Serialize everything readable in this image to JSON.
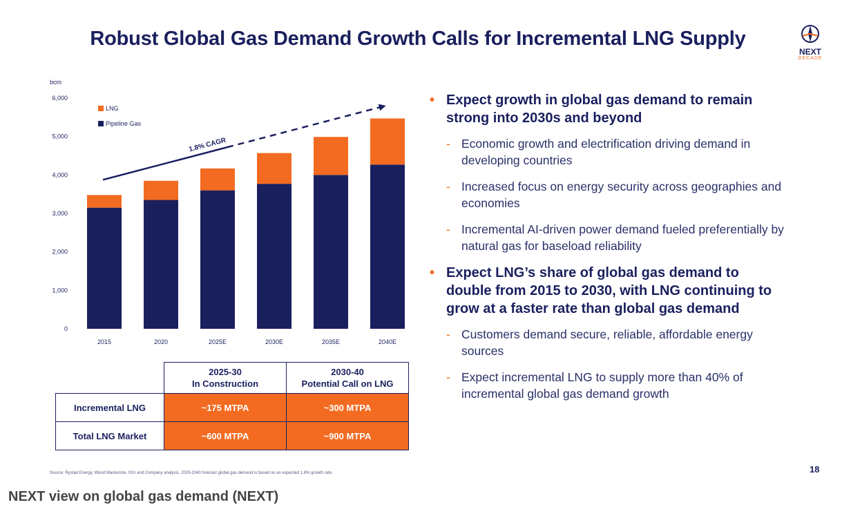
{
  "slide": {
    "title": "Robust Global Gas Demand Growth Calls for Incremental LNG Supply",
    "logo_text": "NEXT",
    "logo_subtext": "DECADE",
    "page_number": "18",
    "source": "Source: Rystad Energy, Wood Mackenzie, IGU and Company analysis. 2025-2040 forecast global gas demand is based on an expected 1.8% growth rate."
  },
  "caption": "NEXT view on global gas demand (NEXT)",
  "chart_data": {
    "type": "bar",
    "stacked": true,
    "title": "",
    "ylabel": "bcm",
    "xlabel": "",
    "ylim": [
      0,
      6000
    ],
    "yticks": [
      0,
      1000,
      2000,
      3000,
      4000,
      5000,
      6000
    ],
    "ytick_labels": [
      "0",
      "1,000",
      "2,000",
      "3,000",
      "4,000",
      "5,000",
      "6,000"
    ],
    "categories": [
      "2015",
      "2020",
      "2025E",
      "2030E",
      "2035E",
      "2040E"
    ],
    "series": [
      {
        "name": "Pipeline Gas",
        "color": "#1a1f5e",
        "values": [
          3150,
          3350,
          3600,
          3770,
          4000,
          4270
        ]
      },
      {
        "name": "LNG",
        "color": "#f26b21",
        "values": [
          330,
          500,
          570,
          800,
          990,
          1200
        ]
      }
    ],
    "legend_order": [
      "LNG",
      "Pipeline Gas"
    ],
    "legend_position": "top-left",
    "annotation": {
      "text": "1.8% CAGR"
    }
  },
  "bullets": [
    {
      "text": "Expect growth in global gas demand to remain strong into 2030s and beyond",
      "sub": [
        "Economic growth and electrification driving demand in developing countries",
        "Increased focus on energy security across geographies and economies",
        "Incremental AI-driven power demand fueled preferentially by natural gas for baseload reliability"
      ]
    },
    {
      "text": "Expect LNG’s share of global gas demand to double from 2015 to 2030, with LNG continuing to grow at a faster rate than global gas demand",
      "sub": [
        "Customers demand secure, reliable, affordable energy sources",
        "Expect incremental LNG to supply more than 40% of incremental global gas demand growth"
      ]
    }
  ],
  "table": {
    "col1_line1": "2025-30",
    "col1_line2": "In Construction",
    "col2_line1": "2030-40",
    "col2_line2": "Potential Call on LNG",
    "rows": [
      {
        "label": "Incremental LNG",
        "v1": "~175 MTPA",
        "v2": "~300 MTPA"
      },
      {
        "label": "Total LNG Market",
        "v1": "~600 MTPA",
        "v2": "~900 MTPA"
      }
    ]
  }
}
